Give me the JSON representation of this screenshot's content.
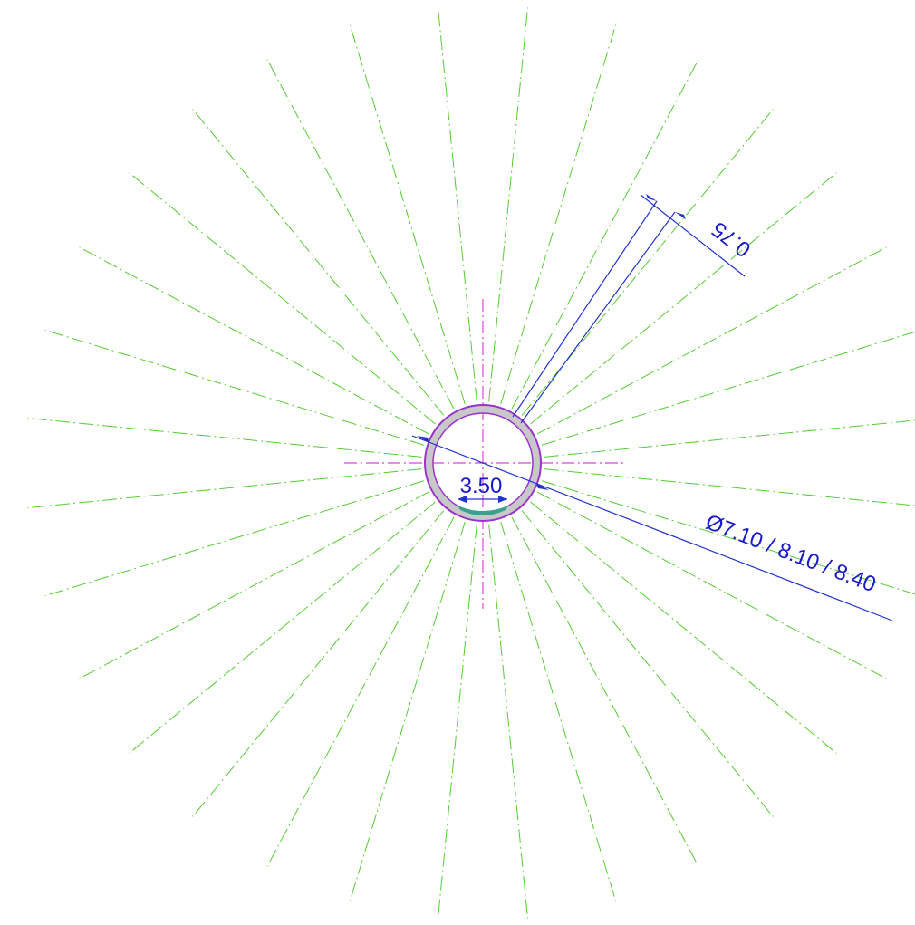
{
  "dimensions": {
    "wall": "0.75",
    "gap": "3.50",
    "diameters": "Ø7.10 / 8.10 / 8.40"
  }
}
